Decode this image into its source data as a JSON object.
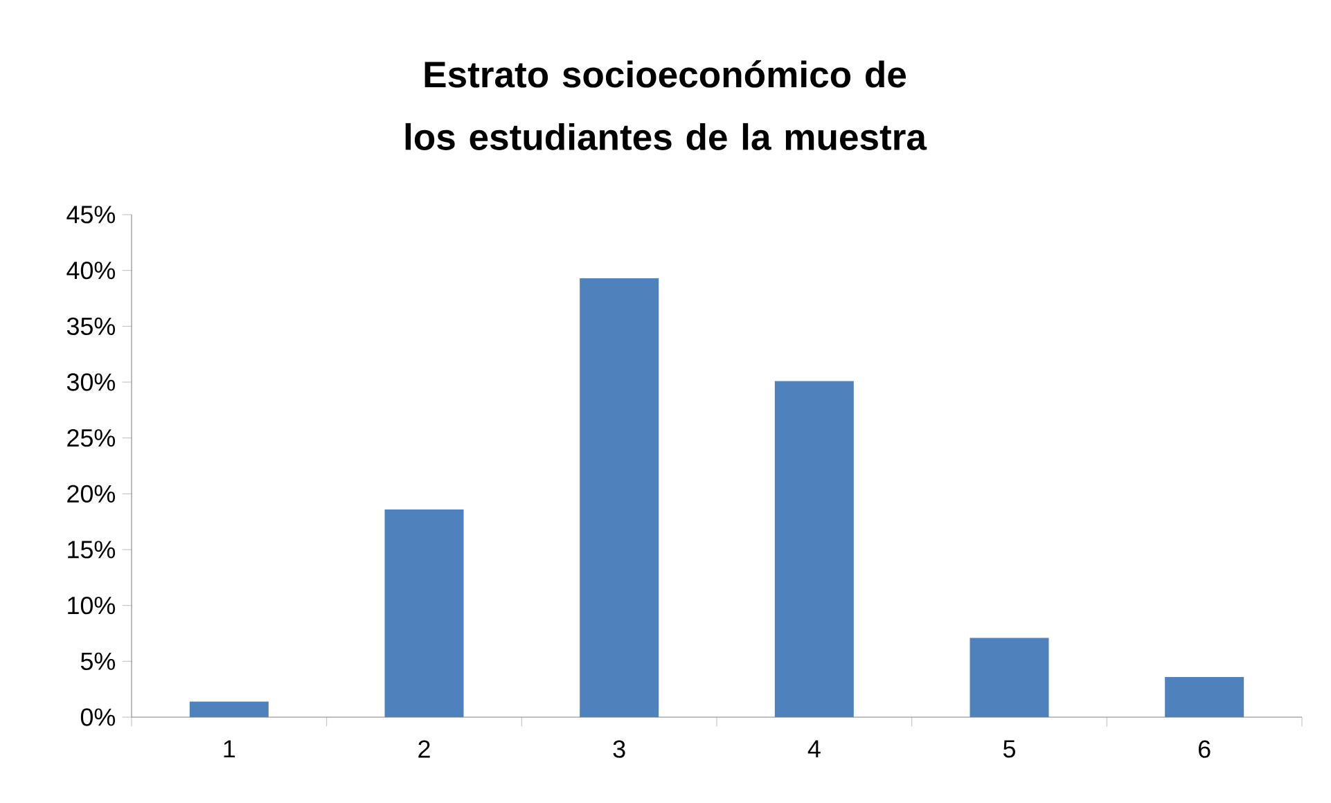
{
  "chart_data": {
    "type": "bar",
    "title": "Estrato socioeconómico de los estudiantes de la muestra",
    "categories": [
      "1",
      "2",
      "3",
      "4",
      "5",
      "6"
    ],
    "values": [
      1.4,
      18.6,
      39.3,
      30.1,
      7.1,
      3.6
    ],
    "color": "#4f81bd",
    "ylim": [
      0,
      45
    ],
    "yticks": [
      {
        "value": 0,
        "label": "0%"
      },
      {
        "value": 5,
        "label": "5%"
      },
      {
        "value": 10,
        "label": "10%"
      },
      {
        "value": 15,
        "label": "15%"
      },
      {
        "value": 20,
        "label": "20%"
      },
      {
        "value": 25,
        "label": "25%"
      },
      {
        "value": 30,
        "label": "30%"
      },
      {
        "value": 35,
        "label": "35%"
      },
      {
        "value": 40,
        "label": "40%"
      },
      {
        "value": 45,
        "label": "45%"
      }
    ],
    "grid": false
  }
}
